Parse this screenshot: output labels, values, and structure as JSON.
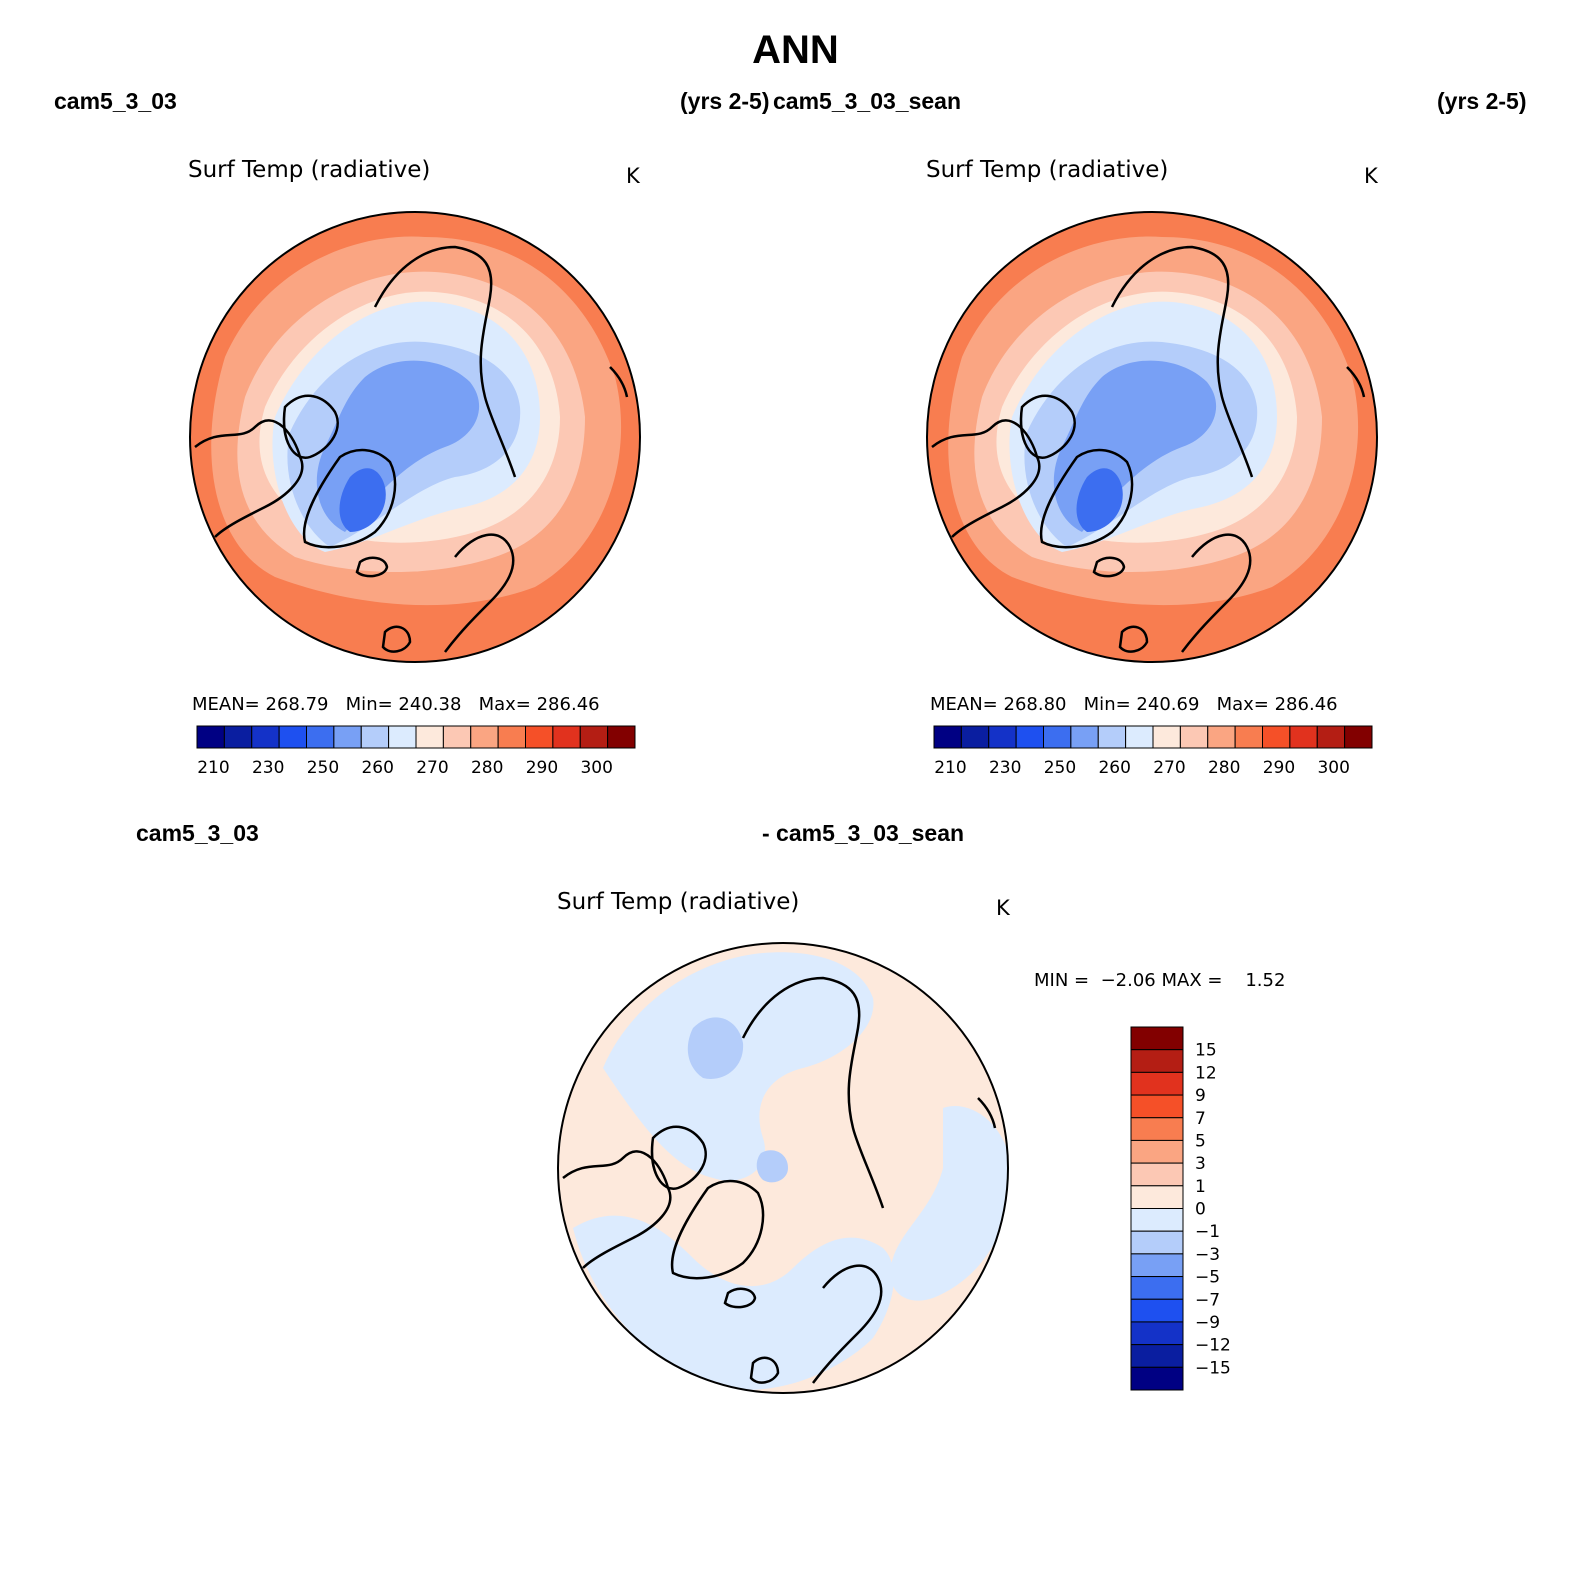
{
  "header": {
    "title": "ANN",
    "top_left_case": "cam5_3_03",
    "top_left_years": "(yrs 2-5)",
    "top_right_case": "cam5_3_03_sean",
    "top_right_years": "(yrs 2-5)",
    "bottom_left_case": "cam5_3_03",
    "bottom_right_case": "- cam5_3_03_sean"
  },
  "colors": {
    "map_levels": [
      "#000083",
      "#0a1ea0",
      "#1432c8",
      "#1e50f0",
      "#3c6ef0",
      "#78a0f5",
      "#b4cdfa",
      "#dcebfe",
      "#fde9dc",
      "#fcc8b4",
      "#faa582",
      "#f87d50",
      "#f55028",
      "#e1321e",
      "#b41e14",
      "#820000"
    ],
    "diff_levels": [
      "#000083",
      "#0a1ea0",
      "#1432c8",
      "#1e50f0",
      "#3c6ef0",
      "#78a0f5",
      "#b4cdfa",
      "#dcebfe",
      "#fde9dc",
      "#fcc8b4",
      "#faa582",
      "#f87d50",
      "#f55028",
      "#e1321e",
      "#b41e14",
      "#820000"
    ]
  },
  "chart_data": [
    {
      "type": "heatmap",
      "projection": "north polar stereographic",
      "title": "Surf Temp (radiative)",
      "units": "K",
      "stats": {
        "mean_label": "MEAN=",
        "mean": "268.79",
        "min_label": "Min=",
        "min": "240.38",
        "max_label": "Max=",
        "max": "286.46"
      },
      "colorbar": {
        "orientation": "horizontal",
        "levels": [
          210,
          220,
          230,
          240,
          250,
          255,
          260,
          265,
          270,
          275,
          280,
          285,
          290,
          295,
          300
        ],
        "tick_labels": [
          "210",
          "230",
          "250",
          "260",
          "270",
          "280",
          "290",
          "300"
        ]
      }
    },
    {
      "type": "heatmap",
      "projection": "north polar stereographic",
      "title": "Surf Temp (radiative)",
      "units": "K",
      "stats": {
        "mean_label": "MEAN=",
        "mean": "268.80",
        "min_label": "Min=",
        "min": "240.69",
        "max_label": "Max=",
        "max": "286.46"
      },
      "colorbar": {
        "orientation": "horizontal",
        "levels": [
          210,
          220,
          230,
          240,
          250,
          255,
          260,
          265,
          270,
          275,
          280,
          285,
          290,
          295,
          300
        ],
        "tick_labels": [
          "210",
          "230",
          "250",
          "260",
          "270",
          "280",
          "290",
          "300"
        ]
      }
    },
    {
      "type": "heatmap",
      "projection": "north polar stereographic",
      "title": "Surf Temp (radiative)",
      "units": "K",
      "stats": {
        "min_label": "MIN =",
        "min": "−2.06",
        "max_label": "MAX =",
        "max": "1.52"
      },
      "colorbar": {
        "orientation": "vertical",
        "levels": [
          -15,
          -12,
          -9,
          -7,
          -5,
          -3,
          -1,
          0,
          1,
          3,
          5,
          7,
          9,
          12,
          15
        ],
        "tick_labels": [
          "15",
          "12",
          "9",
          "7",
          "5",
          "3",
          "1",
          "0",
          "−1",
          "−3",
          "−5",
          "−7",
          "−9",
          "−12",
          "−15"
        ]
      }
    }
  ]
}
